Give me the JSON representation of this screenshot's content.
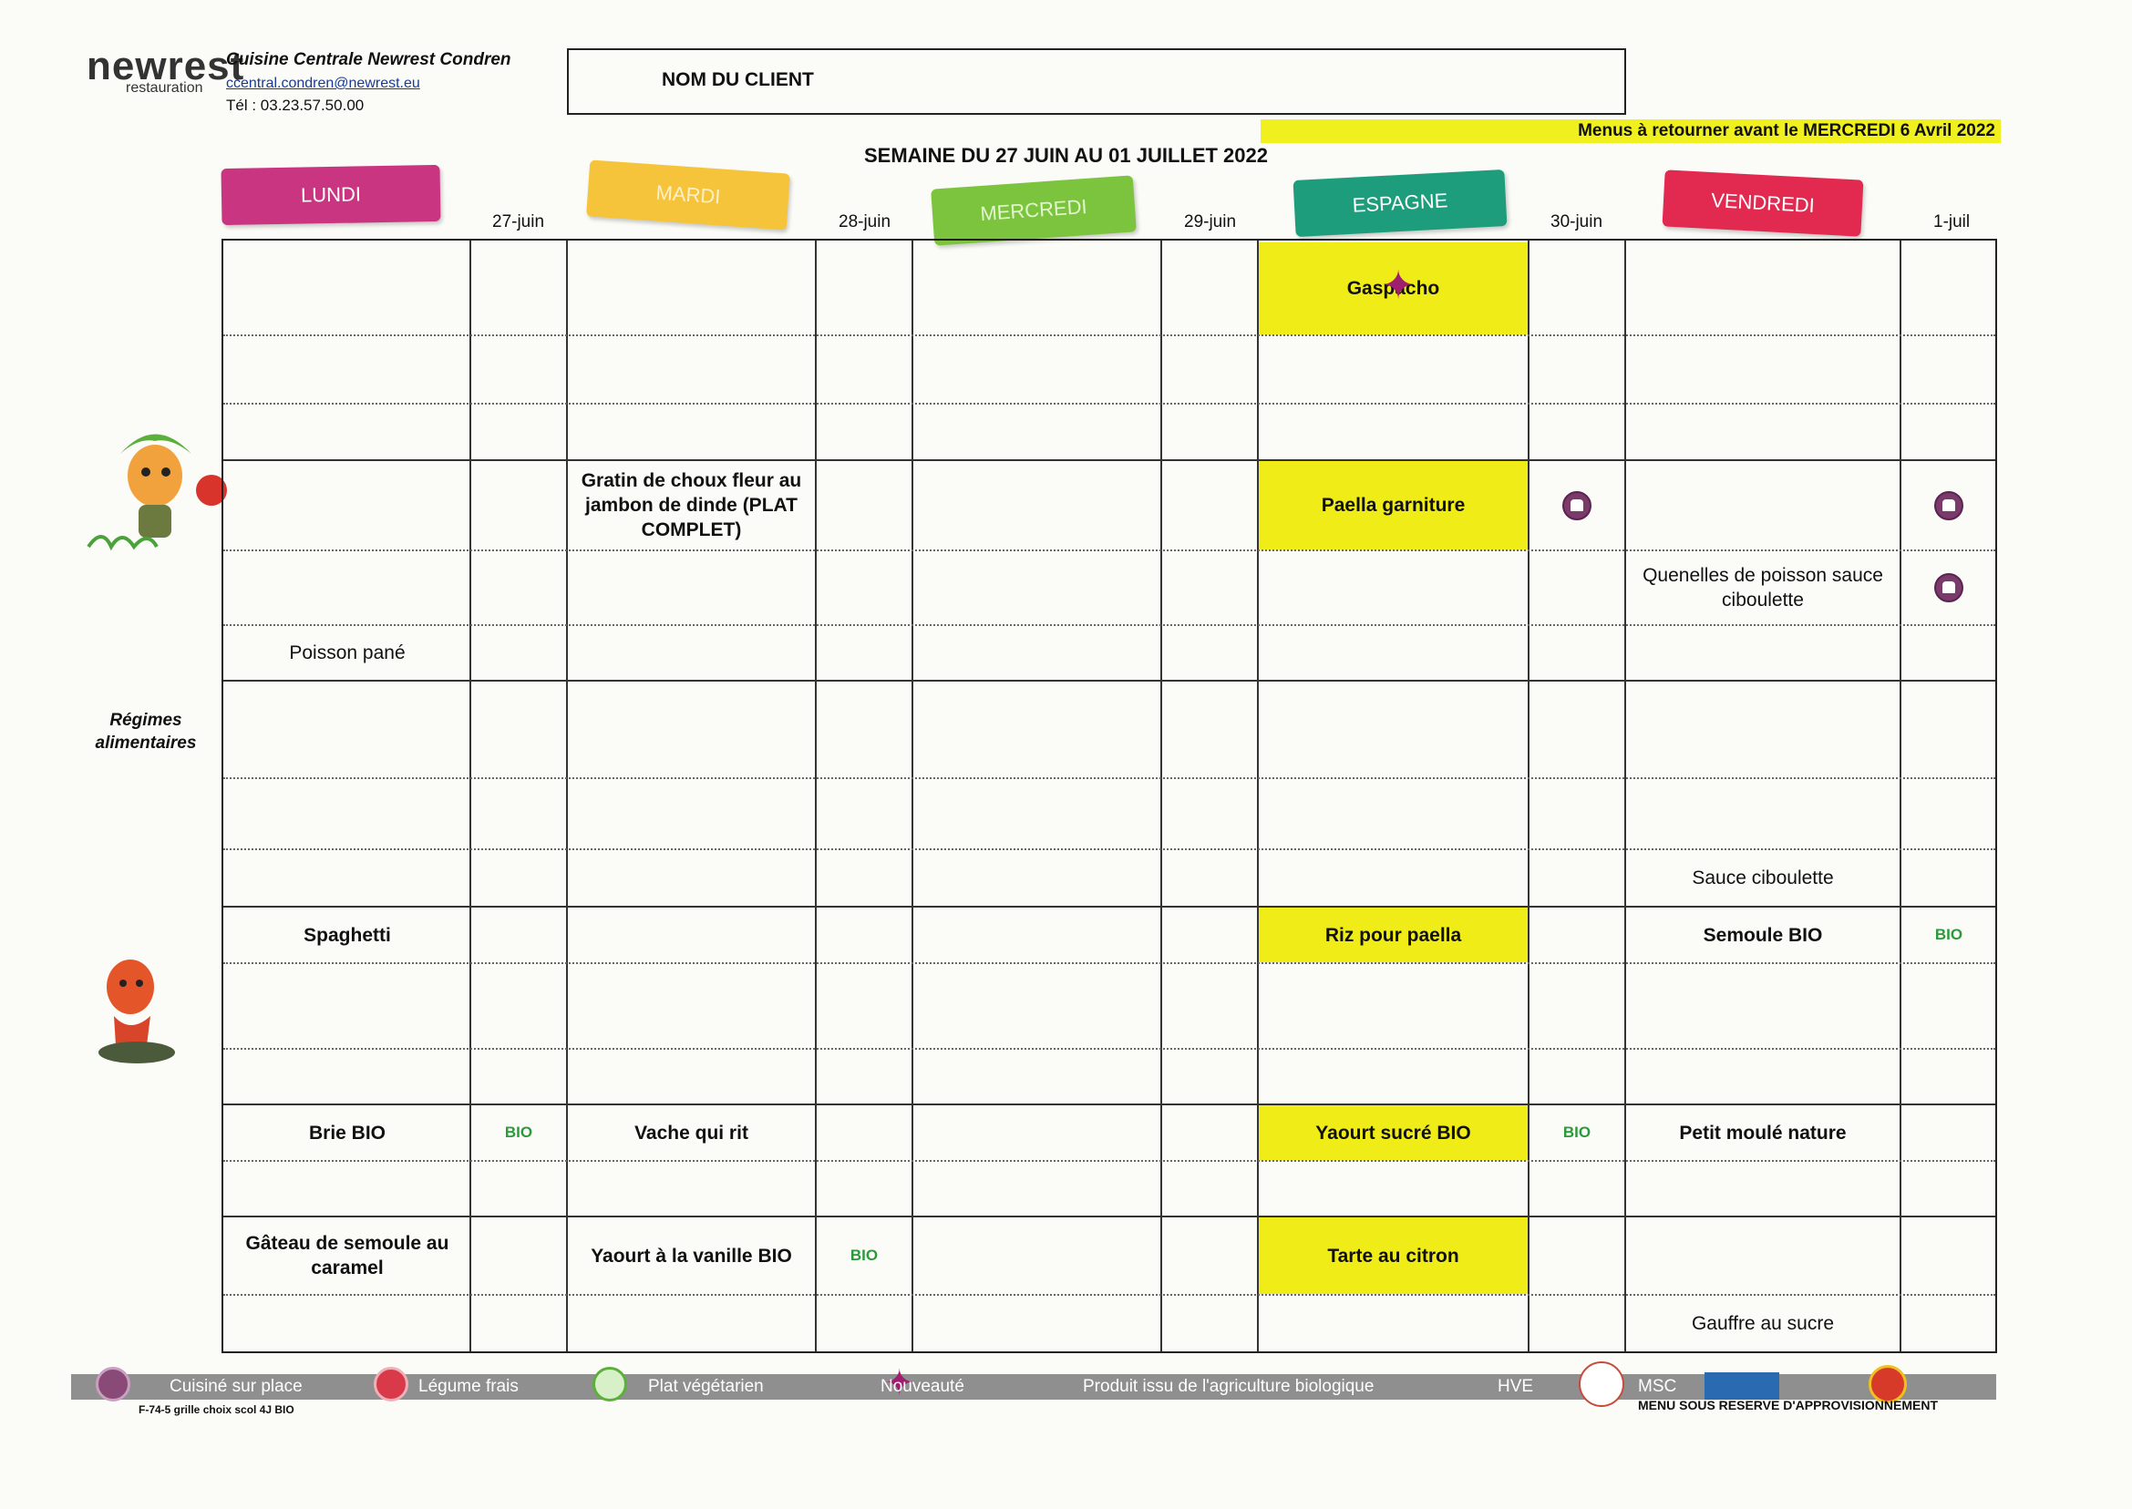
{
  "header": {
    "logo": "newrest",
    "logo_sub": "restauration",
    "org_name": "Cuisine Centrale Newrest Condren",
    "email": "ccentral.condren@newrest.eu",
    "tel": "Tél : 03.23.57.50.00",
    "client_label": "NOM DU CLIENT",
    "deadline": "Menus à retourner avant le MERCREDI 6 Avril 2022",
    "week": "SEMAINE DU 27 JUIN AU 01 JUILLET 2022"
  },
  "days": [
    {
      "label": "LUNDI",
      "date": "27-juin"
    },
    {
      "label": "MARDI",
      "date": "28-juin"
    },
    {
      "label": "MERCREDI",
      "date": "29-juin"
    },
    {
      "label": "ESPAGNE",
      "date": "30-juin"
    },
    {
      "label": "VENDREDI",
      "date": "1-juil"
    }
  ],
  "menu": {
    "espagne_entree": "Gaspacho",
    "mardi_plat": "Gratin de choux fleur au jambon de dinde (PLAT COMPLET)",
    "espagne_plat": "Paella garniture",
    "vendredi_plat": "Quenelles de poisson sauce ciboulette",
    "lundi_plat": "Poisson pané",
    "vendredi_sauce": "Sauce ciboulette",
    "lundi_accomp": "Spaghetti",
    "espagne_accomp": "Riz pour paella",
    "vendredi_accomp": "Semoule BIO",
    "lundi_fromage": "Brie BIO",
    "mardi_fromage": "Vache qui rit",
    "espagne_fromage": "Yaourt sucré BIO",
    "vendredi_fromage": "Petit moulé nature",
    "lundi_dessert": "Gâteau de semoule au caramel",
    "mardi_dessert": "Yaourt à la vanille BIO",
    "espagne_dessert": "Tarte au citron",
    "vendredi_dessert": "Gauffre au sucre"
  },
  "bio_label": "BIO",
  "side_label": "Régimes alimentaires",
  "legend": {
    "cuisine": "Cuisiné sur place",
    "legume": "Légume frais",
    "vegetarien": "Plat végétarien",
    "nouveaute": "Nouveauté",
    "bio": "Produit issu de l'agriculture biologique",
    "hve": "HVE",
    "msc": "MSC",
    "code": "F-74-5 grille choix scol 4J BIO",
    "reserve": "MENU SOUS RESERVE D'APPROVISIONNEMENT"
  },
  "colors": {
    "lundi": "#c93580",
    "mardi": "#f6c43a",
    "mercredi": "#7cc43e",
    "espagne": "#1e9d7d",
    "vendredi": "#e2294f",
    "highlight": "#f0ec18"
  }
}
